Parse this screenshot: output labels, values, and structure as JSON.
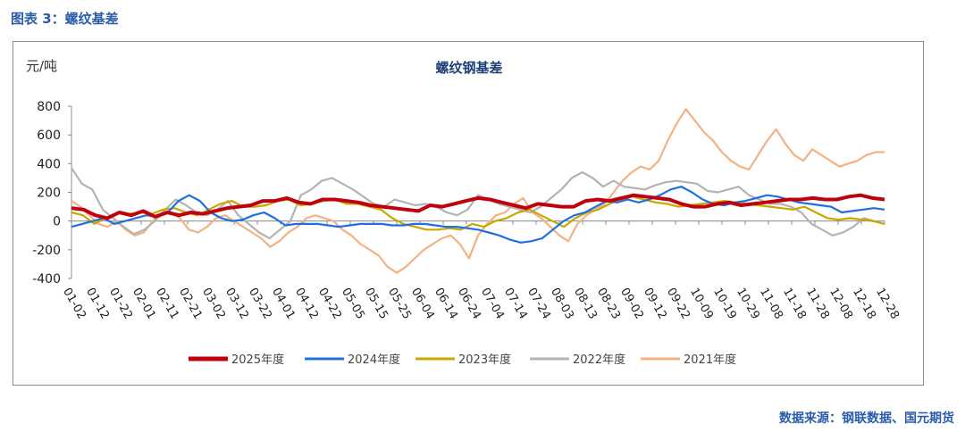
{
  "figure_title": "图表 3：螺纹基差",
  "source": "数据来源：钢联数据、国元期货",
  "chart_data": {
    "type": "line",
    "title": "螺纹钢基差",
    "ylabel": "元/吨",
    "ylim": [
      -400,
      800
    ],
    "yticks": [
      -400,
      -200,
      0,
      200,
      400,
      600,
      800
    ],
    "x_labels": [
      "01-02",
      "01-12",
      "01-22",
      "02-01",
      "02-11",
      "02-21",
      "03-02",
      "03-12",
      "03-22",
      "04-01",
      "04-12",
      "04-22",
      "05-05",
      "05-15",
      "05-25",
      "06-04",
      "06-14",
      "06-24",
      "07-04",
      "07-14",
      "07-24",
      "08-03",
      "08-13",
      "08-23",
      "09-02",
      "09-12",
      "09-22",
      "10-09",
      "10-19",
      "10-29",
      "11-08",
      "11-18",
      "11-28",
      "12-08",
      "12-18",
      "12-28"
    ],
    "grid": false,
    "legend_position": "bottom",
    "colors": {
      "2025年度": "#c0000b",
      "2024年度": "#1f6fe0",
      "2023年度": "#c8a800",
      "2022年度": "#b3b3b3",
      "2021年度": "#f4b183"
    },
    "series": [
      {
        "name": "2025年度",
        "values": [
          90,
          80,
          40,
          20,
          60,
          40,
          70,
          30,
          60,
          40,
          60,
          50,
          70,
          90,
          100,
          110,
          140,
          140,
          160,
          130,
          120,
          150,
          150,
          140,
          130,
          110,
          100,
          90,
          80,
          70,
          110,
          100,
          120,
          140,
          160,
          150,
          130,
          110,
          90,
          120,
          110,
          100,
          100,
          140,
          150,
          140,
          160,
          180,
          170,
          160,
          150,
          120,
          100,
          100,
          120,
          130,
          110,
          120,
          130,
          140,
          150,
          150,
          160,
          150,
          150,
          170,
          180,
          160,
          150
        ]
      },
      {
        "name": "2024年度",
        "values": [
          -40,
          -20,
          0,
          20,
          -20,
          0,
          20,
          40,
          30,
          60,
          140,
          180,
          140,
          60,
          20,
          0,
          10,
          40,
          60,
          20,
          -30,
          -20,
          -20,
          -20,
          -30,
          -40,
          -30,
          -20,
          -20,
          -20,
          -30,
          -30,
          -20,
          -20,
          -30,
          -40,
          -40,
          -50,
          -60,
          -80,
          -100,
          -130,
          -150,
          -140,
          -120,
          -60,
          0,
          40,
          60,
          100,
          140,
          130,
          150,
          130,
          150,
          180,
          220,
          240,
          200,
          150,
          120,
          110,
          130,
          140,
          160,
          180,
          170,
          150,
          130,
          120,
          110,
          100,
          60,
          70,
          80,
          90,
          80
        ]
      },
      {
        "name": "2023年度",
        "values": [
          60,
          40,
          -20,
          20,
          60,
          50,
          60,
          50,
          80,
          90,
          60,
          40,
          80,
          120,
          140,
          100,
          100,
          110,
          140,
          150,
          110,
          120,
          140,
          150,
          120,
          120,
          100,
          80,
          20,
          -20,
          -40,
          -60,
          -60,
          -50,
          -60,
          -20,
          -40,
          0,
          20,
          60,
          80,
          40,
          0,
          -40,
          20,
          60,
          80,
          120,
          150,
          170,
          150,
          130,
          120,
          100,
          110,
          120,
          130,
          140,
          130,
          120,
          110,
          100,
          90,
          80,
          100,
          60,
          20,
          10,
          20,
          10,
          0,
          -20
        ]
      },
      {
        "name": "2022年度",
        "values": [
          370,
          260,
          220,
          80,
          20,
          -40,
          -90,
          -60,
          0,
          80,
          150,
          110,
          60,
          40,
          80,
          140,
          40,
          -20,
          -80,
          -120,
          -60,
          0,
          180,
          220,
          280,
          300,
          260,
          220,
          170,
          120,
          100,
          150,
          130,
          110,
          120,
          100,
          60,
          40,
          80,
          180,
          150,
          120,
          100,
          80,
          60,
          100,
          160,
          220,
          300,
          340,
          300,
          240,
          280,
          240,
          230,
          220,
          250,
          270,
          280,
          270,
          260,
          210,
          200,
          220,
          240,
          180,
          150,
          120,
          120,
          100,
          60,
          -20,
          -60,
          -100,
          -80,
          -40,
          20,
          0,
          -20
        ]
      },
      {
        "name": "2021年度",
        "values": [
          140,
          100,
          40,
          -20,
          -40,
          0,
          -60,
          -100,
          -80,
          0,
          40,
          60,
          20,
          -60,
          -80,
          -40,
          20,
          40,
          0,
          -40,
          -80,
          -120,
          -180,
          -140,
          -80,
          -40,
          20,
          40,
          20,
          0,
          -60,
          -100,
          -160,
          -200,
          -240,
          -320,
          -360,
          -320,
          -260,
          -200,
          -160,
          -120,
          -100,
          -160,
          -260,
          -100,
          -20,
          40,
          60,
          120,
          160,
          60,
          20,
          -40,
          -100,
          -140,
          -20,
          40,
          80,
          120,
          200,
          280,
          340,
          380,
          360,
          420,
          560,
          680,
          780,
          700,
          620,
          560,
          480,
          420,
          380,
          360,
          460,
          560,
          640,
          540,
          460,
          420,
          500,
          460,
          420,
          380,
          400,
          420,
          460,
          480,
          480
        ]
      }
    ]
  }
}
